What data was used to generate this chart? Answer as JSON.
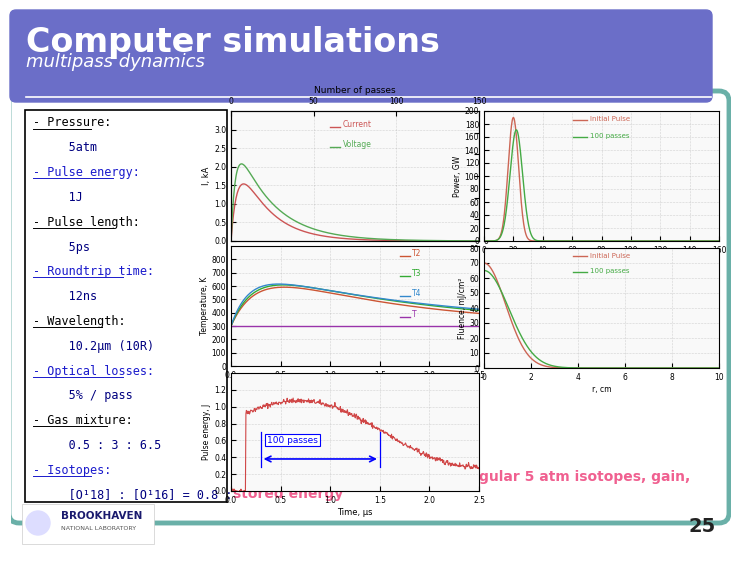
{
  "title": "Computer simulations",
  "subtitle": "multipass dynamics",
  "title_bg_color": "#6b6ec8",
  "title_text_color": "#ffffff",
  "slide_bg_color": "#ffffff",
  "border_color": "#6ab0a8",
  "bottom_text_line1": "Compare simulations 10 atm regular 5 atm isotopes, gain,",
  "bottom_text_line2": "stored energy",
  "bottom_text_color": "#f06090",
  "page_number": "25",
  "left_panel_border": "#000000",
  "center_panel_border": "#555555",
  "right_panel_border": "#555555"
}
